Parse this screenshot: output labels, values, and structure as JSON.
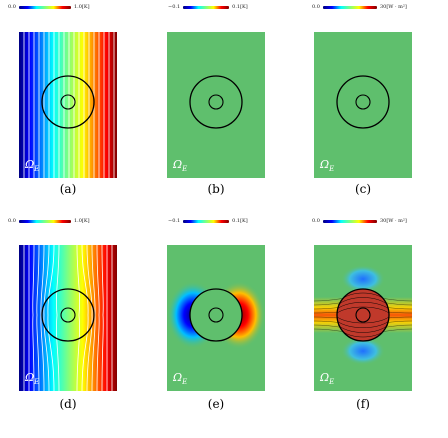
{
  "colors": {
    "jet": [
      "#00007f",
      "#0000ff",
      "#007fff",
      "#00ffff",
      "#7fff7f",
      "#ffff00",
      "#ff7f00",
      "#ff0000",
      "#7f0000"
    ],
    "flat_green": "#5fbf6d",
    "ring": "#000000",
    "omega_text": "#ffffff"
  },
  "top_row": {
    "colorbars": [
      {
        "min": "0.0",
        "max": "1.0",
        "unit": "[K]"
      },
      {
        "min": "−0.1",
        "max": "0.1",
        "unit": "[K]"
      },
      {
        "min": "0.0",
        "max": "30",
        "unit": "[W · m²]"
      }
    ],
    "captions": [
      "(a)",
      "(b)",
      "(c)"
    ]
  },
  "bottom_row": {
    "colorbars": [
      {
        "min": "0.0",
        "max": "1.0",
        "unit": "[K]"
      },
      {
        "min": "−0.1",
        "max": "0.1",
        "unit": "[K]"
      },
      {
        "min": "0.0",
        "max": "30",
        "unit": "[W · m²]"
      }
    ],
    "captions": [
      "(d)",
      "(e)",
      "(f)"
    ]
  },
  "labels": {
    "omega_symbol": "Ω",
    "omega_sub": "E",
    "inner_label": "Ω"
  }
}
